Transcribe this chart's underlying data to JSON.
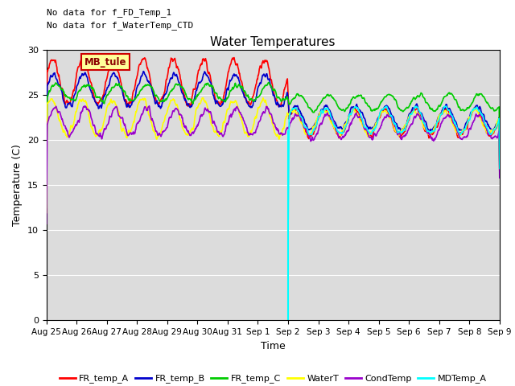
{
  "title": "Water Temperatures",
  "ylabel": "Temperature (C)",
  "xlabel": "Time",
  "annotation_text1": "No data for f_FD_Temp_1",
  "annotation_text2": "No data for f_WaterTemp_CTD",
  "legend_label": "MB_tule",
  "ylim": [
    0,
    30
  ],
  "yticks": [
    0,
    5,
    10,
    15,
    20,
    25,
    30
  ],
  "x_tick_labels": [
    "Aug 25",
    "Aug 26",
    "Aug 27",
    "Aug 28",
    "Aug 29",
    "Aug 30",
    "Aug 31",
    "Sep 1",
    "Sep 2",
    "Sep 3",
    "Sep 4",
    "Sep 5",
    "Sep 6",
    "Sep 7",
    "Sep 8",
    "Sep 9"
  ],
  "vline_x": 8.0,
  "vline_color": "#00FFFF",
  "series": {
    "FR_temp_A": {
      "color": "#FF0000",
      "lw": 1.2
    },
    "FR_temp_B": {
      "color": "#0000CC",
      "lw": 1.2
    },
    "FR_temp_C": {
      "color": "#00CC00",
      "lw": 1.2
    },
    "WaterT": {
      "color": "#FFFF00",
      "lw": 1.2
    },
    "CondTemp": {
      "color": "#9900CC",
      "lw": 1.2
    },
    "MDTemp_A": {
      "color": "#00FFFF",
      "lw": 1.2
    }
  },
  "bg_color": "#DCDCDC",
  "fig_bg_color": "#FFFFFF",
  "legend_box_color": "#FFFF99",
  "legend_box_edge": "#CC0000",
  "figsize": [
    6.4,
    4.8
  ],
  "dpi": 100
}
